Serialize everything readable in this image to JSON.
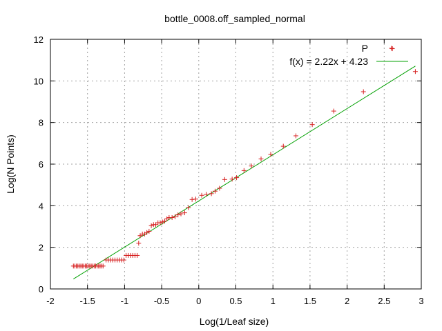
{
  "chart_data": {
    "type": "scatter",
    "title": "bottle_0008.off_sampled_normal",
    "xlabel": "Log(1/Leaf size)",
    "ylabel": "Log(N Points)",
    "xlim": [
      -2,
      3
    ],
    "ylim": [
      0,
      12
    ],
    "xticks": [
      "-2",
      "-1.5",
      "-1",
      "-0.5",
      "0",
      "0.5",
      "1",
      "1.5",
      "2",
      "2.5",
      "3"
    ],
    "yticks": [
      "0",
      "2",
      "4",
      "6",
      "8",
      "10",
      "12"
    ],
    "grid": true,
    "legend_position": "top-right",
    "series": [
      {
        "name": "P",
        "kind": "points",
        "marker": "+",
        "color": "#d62020",
        "points": [
          [
            -1.69,
            1.1
          ],
          [
            -1.67,
            1.1
          ],
          [
            -1.65,
            1.1
          ],
          [
            -1.63,
            1.1
          ],
          [
            -1.61,
            1.1
          ],
          [
            -1.59,
            1.1
          ],
          [
            -1.57,
            1.1
          ],
          [
            -1.55,
            1.1
          ],
          [
            -1.53,
            1.1
          ],
          [
            -1.51,
            1.1
          ],
          [
            -1.49,
            1.1
          ],
          [
            -1.47,
            1.1
          ],
          [
            -1.45,
            1.1
          ],
          [
            -1.43,
            1.1
          ],
          [
            -1.41,
            1.1
          ],
          [
            -1.39,
            1.1
          ],
          [
            -1.37,
            1.1
          ],
          [
            -1.35,
            1.1
          ],
          [
            -1.33,
            1.1
          ],
          [
            -1.31,
            1.1
          ],
          [
            -1.29,
            1.1
          ],
          [
            -1.25,
            1.39
          ],
          [
            -1.22,
            1.39
          ],
          [
            -1.19,
            1.39
          ],
          [
            -1.16,
            1.39
          ],
          [
            -1.13,
            1.39
          ],
          [
            -1.1,
            1.39
          ],
          [
            -1.07,
            1.39
          ],
          [
            -1.04,
            1.39
          ],
          [
            -1.01,
            1.39
          ],
          [
            -0.98,
            1.61
          ],
          [
            -0.95,
            1.61
          ],
          [
            -0.92,
            1.61
          ],
          [
            -0.89,
            1.61
          ],
          [
            -0.86,
            1.61
          ],
          [
            -0.83,
            1.61
          ],
          [
            -0.81,
            2.2
          ],
          [
            -0.79,
            2.56
          ],
          [
            -0.76,
            2.64
          ],
          [
            -0.73,
            2.64
          ],
          [
            -0.7,
            2.71
          ],
          [
            -0.67,
            2.77
          ],
          [
            -0.64,
            3.04
          ],
          [
            -0.61,
            3.09
          ],
          [
            -0.58,
            3.09
          ],
          [
            -0.55,
            3.18
          ],
          [
            -0.52,
            3.18
          ],
          [
            -0.49,
            3.22
          ],
          [
            -0.46,
            3.26
          ],
          [
            -0.43,
            3.37
          ],
          [
            -0.4,
            3.43
          ],
          [
            -0.36,
            3.43
          ],
          [
            -0.32,
            3.47
          ],
          [
            -0.28,
            3.56
          ],
          [
            -0.24,
            3.61
          ],
          [
            -0.19,
            3.66
          ],
          [
            -0.14,
            3.91
          ],
          [
            -0.09,
            4.3
          ],
          [
            -0.04,
            4.32
          ],
          [
            0.04,
            4.5
          ],
          [
            0.1,
            4.55
          ],
          [
            0.17,
            4.58
          ],
          [
            0.22,
            4.7
          ],
          [
            0.28,
            4.84
          ],
          [
            0.35,
            5.26
          ],
          [
            0.45,
            5.28
          ],
          [
            0.51,
            5.35
          ],
          [
            0.61,
            5.69
          ],
          [
            0.71,
            5.91
          ],
          [
            0.84,
            6.25
          ],
          [
            0.97,
            6.47
          ],
          [
            1.14,
            6.86
          ],
          [
            1.31,
            7.36
          ],
          [
            1.53,
            7.9
          ],
          [
            1.82,
            8.55
          ],
          [
            2.22,
            9.48
          ],
          [
            2.61,
            11.55
          ],
          [
            2.92,
            10.45
          ]
        ]
      },
      {
        "name": "f(x) = 2.22x + 4.23",
        "kind": "line",
        "color": "#00a000",
        "slope": 2.22,
        "intercept": 4.23,
        "x_range": [
          -1.69,
          2.92
        ]
      }
    ]
  }
}
